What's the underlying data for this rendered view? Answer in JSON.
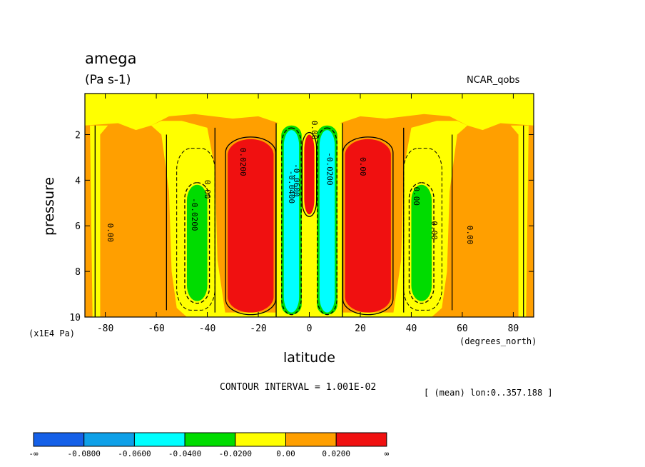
{
  "chart_data": {
    "type": "heatmap",
    "title": "amega",
    "units": "(Pa s-1)",
    "dataset": "NCAR_qobs",
    "xlabel": "latitude",
    "x_units": "(degrees_north)",
    "ylabel": "pressure",
    "y_units": "(x1E4 Pa)",
    "xlim": [
      -88,
      88
    ],
    "ylim": [
      10,
      0.2
    ],
    "x_ticks": [
      -80,
      -60,
      -40,
      -20,
      0,
      20,
      40,
      60,
      80
    ],
    "x_tick_labels": [
      "-80",
      "-60",
      "-40",
      "-20",
      "0",
      "20",
      "40",
      "60",
      "80"
    ],
    "y_ticks": [
      2,
      4,
      6,
      8,
      10
    ],
    "y_tick_labels": [
      "2",
      "4",
      "6",
      "8",
      "10"
    ],
    "contour_interval_text": "CONTOUR INTERVAL = 1.001E-02",
    "mean_note": "[ (mean) lon:0..357.188 ]",
    "levels": [
      -0.08,
      -0.06,
      -0.04,
      -0.02,
      0.0,
      0.02
    ],
    "colorbar": {
      "colors": [
        "#1560e8",
        "#0ea0e8",
        "#00ffff",
        "#00dc00",
        "#ffff00",
        "#ff9f00",
        "#f01010"
      ],
      "labels": [
        "-∞",
        "-0.0800",
        "-0.0600",
        "-0.0400",
        "-0.0200",
        "0.00",
        "0.0200",
        "∞"
      ]
    },
    "contour_labels": [
      "0.00",
      "-0.0200",
      "0.0200",
      "0.00",
      "-0.0400",
      "-0.0600",
      "0.00",
      "-0.0200",
      "0.00",
      "0.00",
      "0.00",
      "0.00"
    ],
    "regions": [
      {
        "value": 0.02,
        "lat": [
          -32,
          -14
        ],
        "p": [
          2.2,
          9.8
        ]
      },
      {
        "value": 0.02,
        "lat": [
          14,
          32
        ],
        "p": [
          2.2,
          9.8
        ]
      },
      {
        "value": 0.02,
        "lat": [
          -2,
          2
        ],
        "p": [
          2.0,
          5.5
        ]
      },
      {
        "value": -0.03,
        "lat": [
          -48,
          -40
        ],
        "p": [
          4.2,
          9.3
        ]
      },
      {
        "value": -0.03,
        "lat": [
          40,
          48
        ],
        "p": [
          4.2,
          9.3
        ]
      },
      {
        "value": -0.06,
        "lat": [
          -10,
          -4
        ],
        "p": [
          1.8,
          9.8
        ]
      },
      {
        "value": -0.06,
        "lat": [
          4,
          10
        ],
        "p": [
          1.8,
          9.8
        ]
      }
    ]
  }
}
